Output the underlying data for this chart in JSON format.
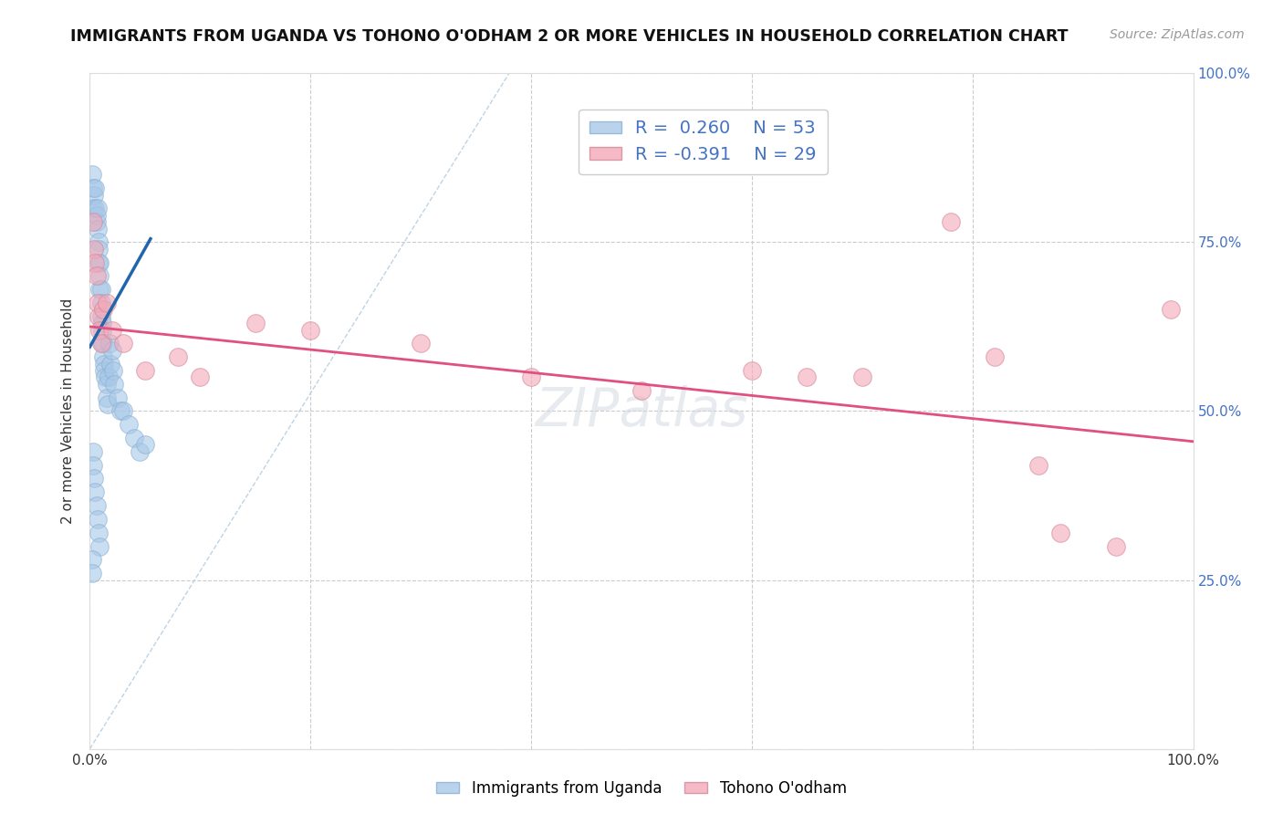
{
  "title": "IMMIGRANTS FROM UGANDA VS TOHONO O'ODHAM 2 OR MORE VEHICLES IN HOUSEHOLD CORRELATION CHART",
  "source": "Source: ZipAtlas.com",
  "ylabel": "2 or more Vehicles in Household",
  "xlim": [
    0,
    1.0
  ],
  "ylim": [
    0,
    1.0
  ],
  "ytick_labels_right": [
    "100.0%",
    "75.0%",
    "50.0%",
    "25.0%"
  ],
  "ytick_positions_right": [
    1.0,
    0.75,
    0.5,
    0.25
  ],
  "legend_r1": "R =  0.260",
  "legend_n1": "N = 53",
  "legend_r2": "R = -0.391",
  "legend_n2": "N = 29",
  "color_blue": "#a8c8e8",
  "color_pink": "#f4a8b8",
  "color_blue_line": "#2166ac",
  "color_pink_line": "#e05080",
  "color_dashed": "#c8d8e8",
  "background": "#ffffff",
  "grid_color": "#cccccc",
  "text_blue": "#4472c4",
  "blue_x": [
    0.002,
    0.003,
    0.003,
    0.004,
    0.005,
    0.005,
    0.006,
    0.006,
    0.007,
    0.007,
    0.008,
    0.008,
    0.008,
    0.009,
    0.009,
    0.009,
    0.01,
    0.01,
    0.01,
    0.011,
    0.011,
    0.011,
    0.012,
    0.012,
    0.013,
    0.013,
    0.014,
    0.015,
    0.015,
    0.016,
    0.017,
    0.018,
    0.019,
    0.02,
    0.021,
    0.022,
    0.025,
    0.028,
    0.03,
    0.035,
    0.04,
    0.045,
    0.05,
    0.003,
    0.003,
    0.004,
    0.005,
    0.006,
    0.007,
    0.008,
    0.009,
    0.002,
    0.002
  ],
  "blue_y": [
    0.85,
    0.83,
    0.8,
    0.82,
    0.83,
    0.8,
    0.78,
    0.79,
    0.8,
    0.77,
    0.75,
    0.74,
    0.72,
    0.72,
    0.7,
    0.68,
    0.68,
    0.66,
    0.64,
    0.63,
    0.62,
    0.6,
    0.6,
    0.58,
    0.57,
    0.56,
    0.55,
    0.54,
    0.52,
    0.51,
    0.55,
    0.6,
    0.57,
    0.59,
    0.56,
    0.54,
    0.52,
    0.5,
    0.5,
    0.48,
    0.46,
    0.44,
    0.45,
    0.44,
    0.42,
    0.4,
    0.38,
    0.36,
    0.34,
    0.32,
    0.3,
    0.28,
    0.26
  ],
  "pink_x": [
    0.003,
    0.004,
    0.005,
    0.006,
    0.007,
    0.008,
    0.009,
    0.01,
    0.012,
    0.015,
    0.02,
    0.03,
    0.05,
    0.08,
    0.1,
    0.15,
    0.2,
    0.3,
    0.4,
    0.5,
    0.6,
    0.65,
    0.7,
    0.78,
    0.82,
    0.86,
    0.88,
    0.93,
    0.98
  ],
  "pink_y": [
    0.78,
    0.74,
    0.72,
    0.7,
    0.66,
    0.64,
    0.62,
    0.6,
    0.65,
    0.66,
    0.62,
    0.6,
    0.56,
    0.58,
    0.55,
    0.63,
    0.62,
    0.6,
    0.55,
    0.53,
    0.56,
    0.55,
    0.55,
    0.78,
    0.58,
    0.42,
    0.32,
    0.3,
    0.65
  ],
  "blue_line_x": [
    0.0,
    0.055
  ],
  "blue_line_y": [
    0.595,
    0.755
  ],
  "pink_line_x": [
    0.0,
    1.0
  ],
  "pink_line_y": [
    0.625,
    0.455
  ],
  "diag_line_x": [
    0.0,
    0.38
  ],
  "diag_line_y": [
    0.0,
    1.0
  ]
}
